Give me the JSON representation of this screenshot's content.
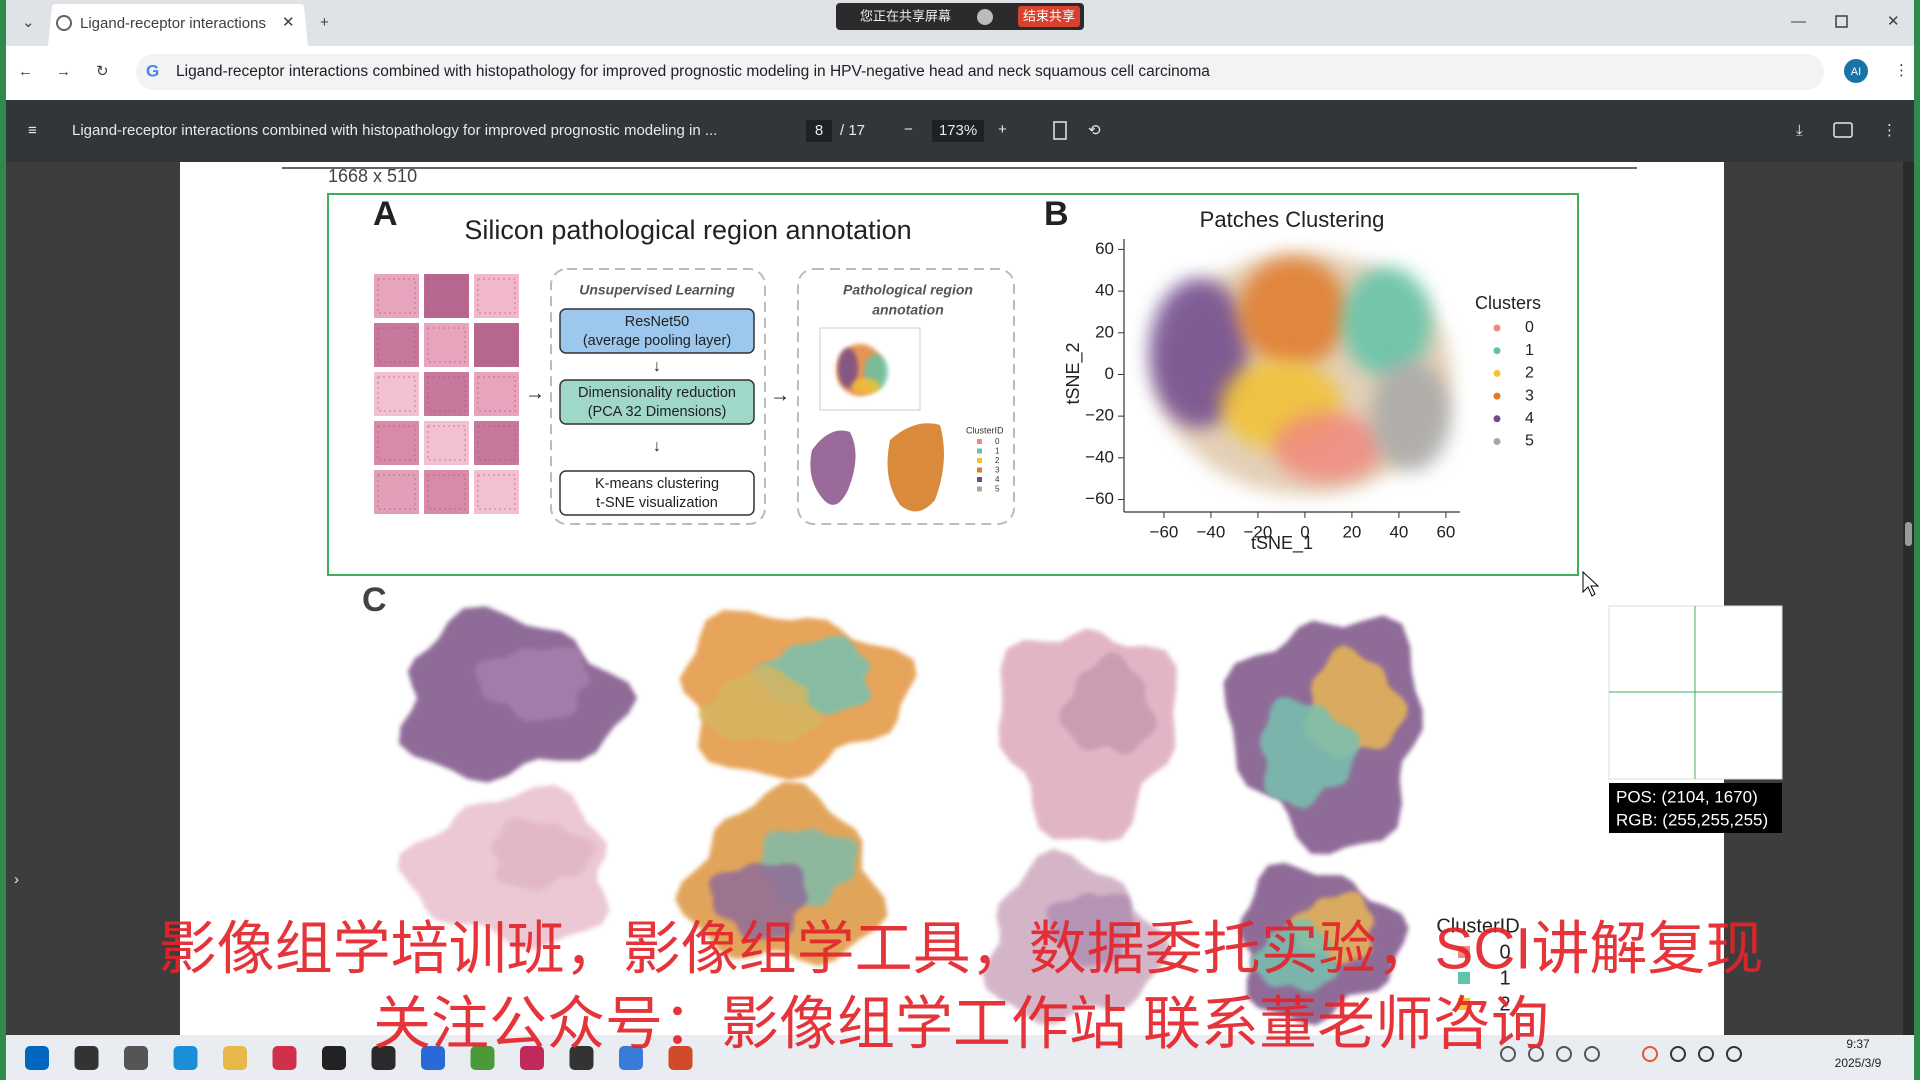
{
  "browser": {
    "tab_title": "Ligand-receptor interactions",
    "url": "Ligand-receptor interactions combined with histopathology for improved prognostic modeling in HPV-negative head and neck squamous cell carcinoma",
    "share_notice": "您正在共享屏幕",
    "stop_share": "结束共享",
    "profile": "AI"
  },
  "pdf_toolbar": {
    "title": "Ligand-receptor interactions combined with histopathology for improved prognostic modeling in ...",
    "page": "8",
    "page_count": "/ 17",
    "zoom": "173%"
  },
  "figure": {
    "size_label": "1668 x 510",
    "panel_a": {
      "letter": "A",
      "title": "Silicon pathological region annotation",
      "box1_title": "Unsupervised Learning",
      "steps": [
        [
          "ResNet50",
          "(average pooling layer)"
        ],
        [
          "Dimensionality reduction",
          "(PCA 32 Dimensions)"
        ],
        [
          "K-means clustering",
          "t-SNE visualization"
        ]
      ],
      "box2_title": [
        "Pathological region",
        "annotation"
      ],
      "legend_title": "ClusterID",
      "legend_items": [
        "0",
        "1",
        "2",
        "3",
        "4",
        "5"
      ]
    },
    "panel_b": {
      "type": "scatter",
      "letter": "B",
      "title": "Patches Clustering",
      "xlabel": "tSNE_1",
      "ylabel": "tSNE_2",
      "xlim": [
        -77,
        66
      ],
      "ylim": [
        -66,
        65
      ],
      "xticks": [
        {
          "value": -60,
          "label": "−60"
        },
        {
          "value": -40,
          "label": "−40"
        },
        {
          "value": -20,
          "label": "−20"
        },
        0,
        20,
        40,
        60
      ],
      "yticks": [
        60,
        40,
        20,
        0,
        {
          "value": -20,
          "label": "−20"
        },
        {
          "value": -40,
          "label": "−40"
        },
        {
          "value": -60,
          "label": "−60"
        }
      ],
      "legend_title": "Clusters",
      "series": [
        {
          "name": "0",
          "color": "#f08a7e"
        },
        {
          "name": "1",
          "color": "#5fc4a8"
        },
        {
          "name": "2",
          "color": "#f2c230"
        },
        {
          "name": "3",
          "color": "#e07a2a"
        },
        {
          "name": "4",
          "color": "#6e4a8e"
        },
        {
          "name": "5",
          "color": "#a8a8a8"
        }
      ]
    },
    "panel_c": {
      "letter": "C",
      "legend_title": "ClusterID",
      "legend_items": [
        "0",
        "1",
        "2"
      ]
    }
  },
  "overlay": {
    "pos": "POS:  (2104, 1670)",
    "rgb": "RGB:  (255,255,255)",
    "banner": [
      "影像组学培训班，影像组学工具，数据委托实验，SCI讲解复现",
      "关注公众号：影像组学工作站   联系董老师咨询"
    ]
  },
  "taskbar": {
    "time": "9:37",
    "date": "2025/3/9"
  }
}
